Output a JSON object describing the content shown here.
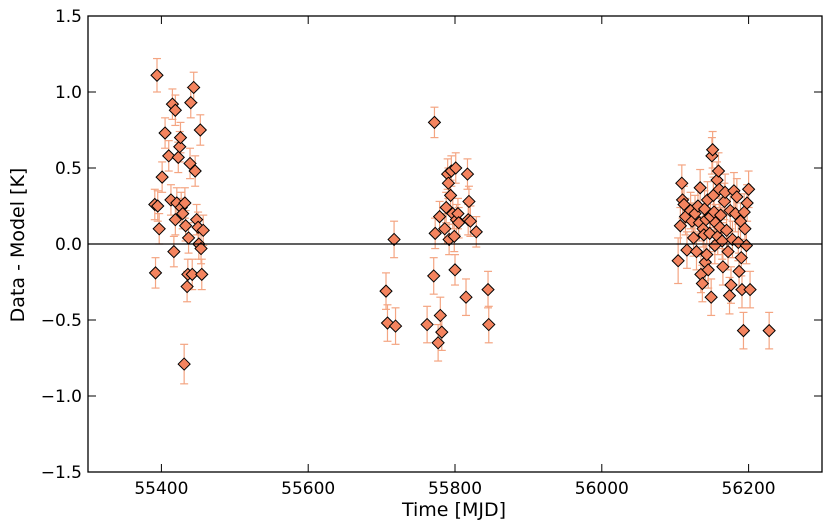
{
  "chart_data": {
    "type": "scatter",
    "xlabel": "Time [MJD]",
    "ylabel": "Data - Model [K]",
    "xlim": [
      55300,
      56300
    ],
    "ylim": [
      -1.5,
      1.5
    ],
    "xticks": [
      55400,
      55600,
      55800,
      56000,
      56200
    ],
    "xtick_labels": [
      "55400",
      "55600",
      "55800",
      "56000",
      "56200"
    ],
    "yticks": [
      -1.5,
      -1.0,
      -0.5,
      0.0,
      0.5,
      1.0,
      1.5
    ],
    "ytick_labels": [
      "−1.5",
      "−1.0",
      "−0.5",
      "0.0",
      "0.5",
      "1.0",
      "1.5"
    ],
    "reference_line_y": 0.0,
    "grid": false,
    "marker": "diamond",
    "marker_color": "#f4845f",
    "errorbar_color": "#f4a582",
    "series": [
      {
        "points": [
          {
            "x": 55391,
            "y": 0.26,
            "err": 0.1
          },
          {
            "x": 55392,
            "y": -0.19,
            "err": 0.1
          },
          {
            "x": 55394,
            "y": 1.11,
            "err": 0.11
          },
          {
            "x": 55395,
            "y": 0.25,
            "err": 0.1
          },
          {
            "x": 55397,
            "y": 0.1,
            "err": 0.1
          },
          {
            "x": 55401,
            "y": 0.44,
            "err": 0.1
          },
          {
            "x": 55405,
            "y": 0.73,
            "err": 0.1
          },
          {
            "x": 55410,
            "y": 0.58,
            "err": 0.1
          },
          {
            "x": 55413,
            "y": 0.29,
            "err": 0.1
          },
          {
            "x": 55415,
            "y": 0.92,
            "err": 0.1
          },
          {
            "x": 55417,
            "y": -0.05,
            "err": 0.1
          },
          {
            "x": 55419,
            "y": 0.88,
            "err": 0.1
          },
          {
            "x": 55419,
            "y": 0.16,
            "err": 0.1
          },
          {
            "x": 55421,
            "y": 0.27,
            "err": 0.1
          },
          {
            "x": 55423,
            "y": 0.57,
            "err": 0.1
          },
          {
            "x": 55425,
            "y": 0.64,
            "err": 0.1
          },
          {
            "x": 55426,
            "y": 0.7,
            "err": 0.1
          },
          {
            "x": 55427,
            "y": 0.24,
            "err": 0.1
          },
          {
            "x": 55429,
            "y": 0.2,
            "err": 0.1
          },
          {
            "x": 55431,
            "y": -0.79,
            "err": 0.13
          },
          {
            "x": 55432,
            "y": 0.27,
            "err": 0.1
          },
          {
            "x": 55433,
            "y": 0.12,
            "err": 0.1
          },
          {
            "x": 55435,
            "y": -0.28,
            "err": 0.1
          },
          {
            "x": 55436,
            "y": -0.2,
            "err": 0.1
          },
          {
            "x": 55437,
            "y": 0.04,
            "err": 0.1
          },
          {
            "x": 55439,
            "y": 0.53,
            "err": 0.1
          },
          {
            "x": 55440,
            "y": 0.93,
            "err": 0.1
          },
          {
            "x": 55442,
            "y": -0.2,
            "err": 0.1
          },
          {
            "x": 55444,
            "y": 1.03,
            "err": 0.1
          },
          {
            "x": 55446,
            "y": 0.48,
            "err": 0.1
          },
          {
            "x": 55448,
            "y": 0.16,
            "err": 0.1
          },
          {
            "x": 55450,
            "y": 0.11,
            "err": 0.1
          },
          {
            "x": 55451,
            "y": 0.0,
            "err": 0.1
          },
          {
            "x": 55453,
            "y": 0.75,
            "err": 0.1
          },
          {
            "x": 55454,
            "y": -0.03,
            "err": 0.1
          },
          {
            "x": 55455,
            "y": -0.2,
            "err": 0.1
          },
          {
            "x": 55457,
            "y": 0.09,
            "err": 0.1
          },
          {
            "x": 55706,
            "y": -0.31,
            "err": 0.12
          },
          {
            "x": 55708,
            "y": -0.52,
            "err": 0.12
          },
          {
            "x": 55717,
            "y": 0.03,
            "err": 0.12
          },
          {
            "x": 55719,
            "y": -0.54,
            "err": 0.12
          },
          {
            "x": 55762,
            "y": -0.53,
            "err": 0.12
          },
          {
            "x": 55771,
            "y": -0.21,
            "err": 0.12
          },
          {
            "x": 55772,
            "y": 0.8,
            "err": 0.1
          },
          {
            "x": 55773,
            "y": 0.07,
            "err": 0.1
          },
          {
            "x": 55777,
            "y": -0.65,
            "err": 0.12
          },
          {
            "x": 55779,
            "y": 0.18,
            "err": 0.1
          },
          {
            "x": 55780,
            "y": -0.47,
            "err": 0.12
          },
          {
            "x": 55782,
            "y": -0.58,
            "err": 0.12
          },
          {
            "x": 55786,
            "y": 0.1,
            "err": 0.1
          },
          {
            "x": 55788,
            "y": 0.24,
            "err": 0.1
          },
          {
            "x": 55790,
            "y": 0.46,
            "err": 0.1
          },
          {
            "x": 55791,
            "y": 0.4,
            "err": 0.1
          },
          {
            "x": 55792,
            "y": 0.03,
            "err": 0.1
          },
          {
            "x": 55794,
            "y": 0.32,
            "err": 0.1
          },
          {
            "x": 55795,
            "y": 0.48,
            "err": 0.1
          },
          {
            "x": 55797,
            "y": 0.2,
            "err": 0.1
          },
          {
            "x": 55799,
            "y": 0.05,
            "err": 0.1
          },
          {
            "x": 55800,
            "y": -0.17,
            "err": 0.1
          },
          {
            "x": 55801,
            "y": 0.5,
            "err": 0.1
          },
          {
            "x": 55802,
            "y": 0.16,
            "err": 0.1
          },
          {
            "x": 55804,
            "y": 0.2,
            "err": 0.1
          },
          {
            "x": 55805,
            "y": 0.14,
            "err": 0.1
          },
          {
            "x": 55815,
            "y": -0.35,
            "err": 0.12
          },
          {
            "x": 55817,
            "y": 0.46,
            "err": 0.1
          },
          {
            "x": 55818,
            "y": 0.16,
            "err": 0.1
          },
          {
            "x": 55819,
            "y": 0.28,
            "err": 0.1
          },
          {
            "x": 55821,
            "y": 0.15,
            "err": 0.1
          },
          {
            "x": 55829,
            "y": 0.08,
            "err": 0.1
          },
          {
            "x": 55845,
            "y": -0.3,
            "err": 0.12
          },
          {
            "x": 55846,
            "y": -0.53,
            "err": 0.12
          },
          {
            "x": 56104,
            "y": -0.11,
            "err": 0.15
          },
          {
            "x": 56107,
            "y": 0.12,
            "err": 0.12
          },
          {
            "x": 56109,
            "y": 0.4,
            "err": 0.12
          },
          {
            "x": 56110,
            "y": 0.29,
            "err": 0.12
          },
          {
            "x": 56112,
            "y": 0.26,
            "err": 0.12
          },
          {
            "x": 56114,
            "y": 0.18,
            "err": 0.12
          },
          {
            "x": 56116,
            "y": -0.04,
            "err": 0.12
          },
          {
            "x": 56121,
            "y": 0.22,
            "err": 0.12
          },
          {
            "x": 56123,
            "y": 0.15,
            "err": 0.12
          },
          {
            "x": 56125,
            "y": 0.04,
            "err": 0.12
          },
          {
            "x": 56127,
            "y": 0.2,
            "err": 0.12
          },
          {
            "x": 56129,
            "y": -0.05,
            "err": 0.12
          },
          {
            "x": 56131,
            "y": 0.25,
            "err": 0.12
          },
          {
            "x": 56133,
            "y": 0.14,
            "err": 0.12
          },
          {
            "x": 56134,
            "y": 0.37,
            "err": 0.12
          },
          {
            "x": 56135,
            "y": -0.2,
            "err": 0.12
          },
          {
            "x": 56137,
            "y": -0.26,
            "err": 0.12
          },
          {
            "x": 56138,
            "y": 0.1,
            "err": 0.12
          },
          {
            "x": 56139,
            "y": 0.06,
            "err": 0.12
          },
          {
            "x": 56140,
            "y": 0.23,
            "err": 0.12
          },
          {
            "x": 56141,
            "y": -0.12,
            "err": 0.12
          },
          {
            "x": 56142,
            "y": 0.16,
            "err": 0.12
          },
          {
            "x": 56143,
            "y": -0.07,
            "err": 0.12
          },
          {
            "x": 56144,
            "y": 0.29,
            "err": 0.12
          },
          {
            "x": 56145,
            "y": -0.17,
            "err": 0.12
          },
          {
            "x": 56147,
            "y": 0.07,
            "err": 0.12
          },
          {
            "x": 56148,
            "y": 0.18,
            "err": 0.12
          },
          {
            "x": 56149,
            "y": -0.35,
            "err": 0.12
          },
          {
            "x": 56150,
            "y": 0.58,
            "err": 0.12
          },
          {
            "x": 56151,
            "y": 0.62,
            "err": 0.12
          },
          {
            "x": 56152,
            "y": 0.32,
            "err": 0.12
          },
          {
            "x": 56153,
            "y": 0.21,
            "err": 0.12
          },
          {
            "x": 56154,
            "y": -0.01,
            "err": 0.12
          },
          {
            "x": 56155,
            "y": 0.14,
            "err": 0.12
          },
          {
            "x": 56157,
            "y": 0.42,
            "err": 0.12
          },
          {
            "x": 56158,
            "y": 0.05,
            "err": 0.12
          },
          {
            "x": 56159,
            "y": 0.48,
            "err": 0.12
          },
          {
            "x": 56160,
            "y": 0.36,
            "err": 0.12
          },
          {
            "x": 56161,
            "y": 0.11,
            "err": 0.12
          },
          {
            "x": 56162,
            "y": 0.19,
            "err": 0.12
          },
          {
            "x": 56164,
            "y": 0.02,
            "err": 0.12
          },
          {
            "x": 56165,
            "y": -0.15,
            "err": 0.12
          },
          {
            "x": 56167,
            "y": 0.28,
            "err": 0.12
          },
          {
            "x": 56168,
            "y": 0.34,
            "err": 0.12
          },
          {
            "x": 56170,
            "y": 0.09,
            "err": 0.12
          },
          {
            "x": 56172,
            "y": -0.05,
            "err": 0.12
          },
          {
            "x": 56174,
            "y": -0.34,
            "err": 0.12
          },
          {
            "x": 56175,
            "y": 0.22,
            "err": 0.12
          },
          {
            "x": 56176,
            "y": -0.27,
            "err": 0.12
          },
          {
            "x": 56178,
            "y": 0.03,
            "err": 0.12
          },
          {
            "x": 56180,
            "y": 0.35,
            "err": 0.12
          },
          {
            "x": 56182,
            "y": 0.2,
            "err": 0.12
          },
          {
            "x": 56184,
            "y": 0.31,
            "err": 0.12
          },
          {
            "x": 56186,
            "y": 0.01,
            "err": 0.12
          },
          {
            "x": 56187,
            "y": -0.18,
            "err": 0.12
          },
          {
            "x": 56189,
            "y": 0.15,
            "err": 0.12
          },
          {
            "x": 56190,
            "y": -0.09,
            "err": 0.12
          },
          {
            "x": 56191,
            "y": -0.3,
            "err": 0.12
          },
          {
            "x": 56193,
            "y": -0.57,
            "err": 0.12
          },
          {
            "x": 56194,
            "y": 0.21,
            "err": 0.12
          },
          {
            "x": 56195,
            "y": 0.1,
            "err": 0.12
          },
          {
            "x": 56197,
            "y": -0.01,
            "err": 0.12
          },
          {
            "x": 56198,
            "y": 0.27,
            "err": 0.12
          },
          {
            "x": 56200,
            "y": 0.36,
            "err": 0.12
          },
          {
            "x": 56202,
            "y": -0.3,
            "err": 0.12
          },
          {
            "x": 56228,
            "y": -0.57,
            "err": 0.12
          }
        ]
      }
    ]
  }
}
